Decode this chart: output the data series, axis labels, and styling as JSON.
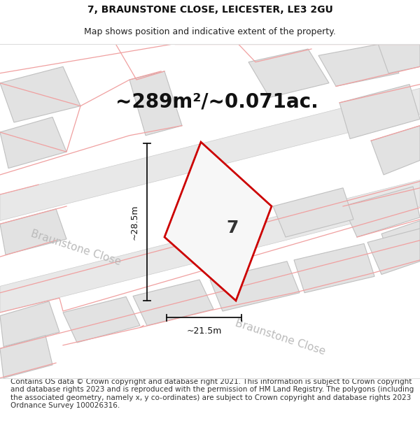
{
  "title_line1": "7, BRAUNSTONE CLOSE, LEICESTER, LE3 2GU",
  "title_line2": "Map shows position and indicative extent of the property.",
  "area_text": "~289m²/~0.071ac.",
  "width_label": "~21.5m",
  "height_label": "~28.5m",
  "number_label": "7",
  "street_label1": "Braunstone Close",
  "street_label2": "Braunstone Close",
  "footer_text": "Contains OS data © Crown copyright and database right 2021. This information is subject to Crown copyright and database rights 2023 and is reproduced with the permission of HM Land Registry. The polygons (including the associated geometry, namely x, y co-ordinates) are subject to Crown copyright and database rights 2023 Ordnance Survey 100026316.",
  "bg_color": "#ffffff",
  "map_bg": "#f7f7f7",
  "road_fill": "#e8e8e8",
  "road_stroke": "#cccccc",
  "plot_stroke": "#cc0000",
  "plot_fill": "#f7f7f7",
  "neighbor_fill": "#e2e2e2",
  "neighbor_stroke": "#c0c0c0",
  "pink_line_color": "#f0a0a0",
  "road_label_color": "#bbbbbb",
  "dim_line_color": "#111111",
  "title_fontsize": 10,
  "subtitle_fontsize": 9,
  "area_fontsize": 20,
  "number_fontsize": 18,
  "label_fontsize": 9,
  "street_fontsize": 11,
  "footer_fontsize": 7.5
}
